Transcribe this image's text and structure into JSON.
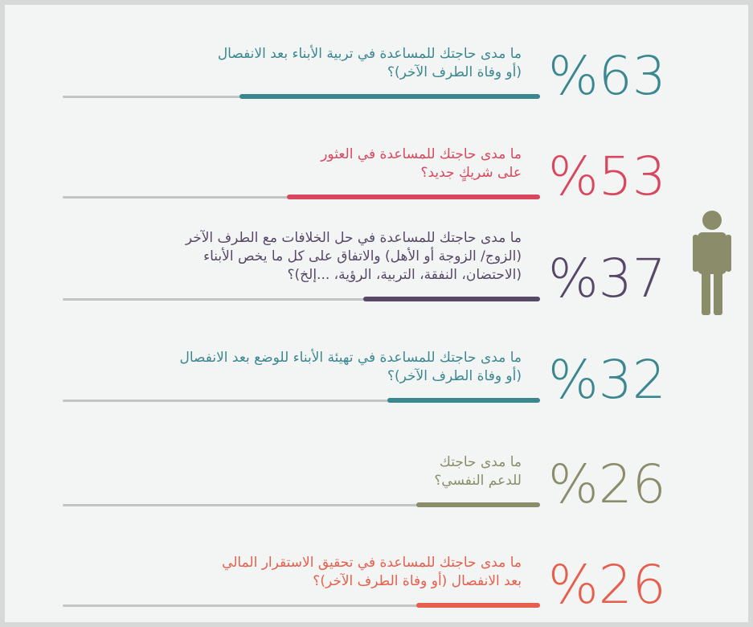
{
  "chart_data": {
    "type": "bar",
    "orientation": "horizontal",
    "categories": [
      "ما مدى حاجتك للمساعدة في تربية الأبناء بعد الانفصال\n(أو وفاة الطرف الآخر)؟",
      "ما مدى حاجتك للمساعدة في العثور\nعلى شريكٍ جديد؟",
      "ما مدى حاجتك للمساعدة في حل الخلافات مع الطرف الآخر\n(الزوج/ الزوجة أو الأهل) والاتفاق على كل ما يخص الأبناء\n(الاحتضان، النفقة، التربية، الرؤية، ...إلخ)؟",
      "ما مدى حاجتك للمساعدة في تهيئة الأبناء للوضع بعد الانفصال\n(أو وفاة الطرف الآخر)؟",
      "ما مدى حاجتك\nللدعم النفسي؟",
      "ما مدى حاجتك للمساعدة في تحقيق الاستقرار المالي\nبعد الانفصال (أو وفاة الطرف الآخر)؟"
    ],
    "values": [
      63,
      53,
      37,
      32,
      26,
      26
    ],
    "value_labels": [
      "%63",
      "%53",
      "%37",
      "%32",
      "%26",
      "%26"
    ],
    "colors": [
      "#3b8790",
      "#d8475d",
      "#584868",
      "#3b8790",
      "#8a8c6a",
      "#e55f4c"
    ],
    "xlim": [
      0,
      100
    ]
  }
}
